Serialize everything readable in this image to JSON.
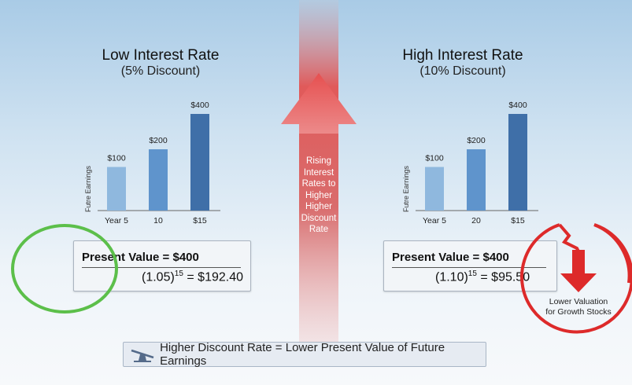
{
  "left_panel": {
    "title": "Low Interest Rate",
    "subtitle": "(5% Discount)",
    "ylabel": "Futre Earnings",
    "formula_top": "Present Value = $400",
    "formula_base": "(1.05)",
    "formula_exp": "15",
    "formula_result": "= $192.40"
  },
  "right_panel": {
    "title": "High Interest Rate",
    "subtitle": "(10% Discount)",
    "ylabel": "Futre Earnings",
    "formula_top": "Present Value = $400",
    "formula_base": "(1.10)",
    "formula_exp": "15",
    "formula_result": "= $95.50"
  },
  "center_arrow": {
    "lines": [
      "Rising",
      "Interest",
      "Rates to",
      "Higher",
      "Higher",
      "Discount",
      "Rate"
    ]
  },
  "callout": {
    "line1": "Lower Valuation",
    "line2": "for Growth Stocks"
  },
  "footer": {
    "text": "Higher Discount Rate = Lower Present Value of Future Earnings",
    "icon": "seesaw-icon"
  },
  "colors": {
    "bar_light": "#8fb8de",
    "bar_mid": "#5f94cc",
    "bar_dark": "#3f6fa8",
    "arrow": "#e04a4a",
    "green": "#5cbf4a",
    "red": "#dd2a2a"
  },
  "chart_data": [
    {
      "type": "bar",
      "title": "Low Interest Rate",
      "categories": [
        "Year 5",
        "10",
        "$15"
      ],
      "values": [
        100,
        200,
        400
      ],
      "value_labels": [
        "$100",
        "$200",
        "$400"
      ],
      "ylabel": "Futre Earnings"
    },
    {
      "type": "bar",
      "title": "High Interest Rate",
      "categories": [
        "Year 5",
        "20",
        "$15"
      ],
      "values": [
        100,
        200,
        400
      ],
      "value_labels": [
        "$100",
        "$200",
        "$400"
      ],
      "ylabel": "Futre Earnings"
    }
  ]
}
